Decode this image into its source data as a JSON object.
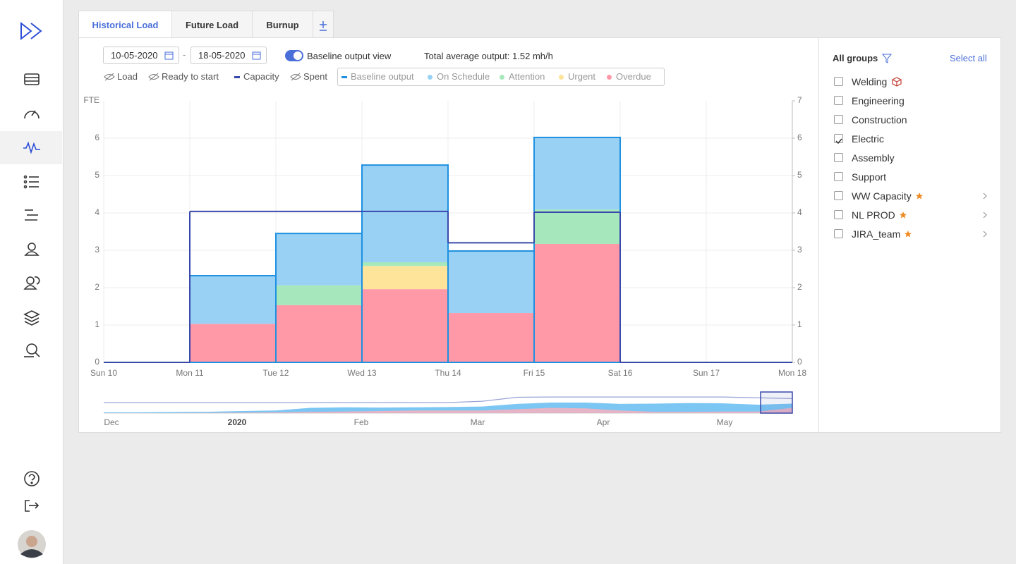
{
  "tabs": [
    {
      "label": "Historical Load",
      "active": true
    },
    {
      "label": "Future Load",
      "active": false
    },
    {
      "label": "Burnup",
      "active": false
    }
  ],
  "toolbar": {
    "date_from": "10-05-2020",
    "date_separator": "-",
    "date_to": "18-05-2020",
    "baseline_view_label": "Baseline output view",
    "baseline_view_on": true,
    "total_output": "Total average output: 1.52 mh/h"
  },
  "chart_data": {
    "type": "stacked-bar",
    "y_label": "FTE",
    "hidden_legend": [
      "Load",
      "Ready to start",
      "Spent"
    ],
    "x": [
      "Sun 10",
      "Mon 11",
      "Tue 12",
      "Wed 13",
      "Thu 14",
      "Fri 15",
      "Sat 16",
      "Sun 17",
      "Mon 18"
    ],
    "ylim": [
      0,
      7
    ],
    "yticks": [
      0,
      1,
      2,
      3,
      4,
      5,
      6
    ],
    "y2lim": [
      0,
      7
    ],
    "y2ticks": [
      0,
      1,
      2,
      3,
      4,
      5,
      6,
      7
    ],
    "grid": true,
    "series": [
      {
        "name": "Overdue",
        "color": "#ff99a8",
        "values": [
          0,
          1.03,
          1.53,
          1.96,
          1.32,
          3.17,
          0,
          0,
          null
        ]
      },
      {
        "name": "Urgent",
        "color": "#fde49a",
        "values": [
          0,
          0,
          0,
          0.62,
          0,
          0,
          0,
          0,
          null
        ]
      },
      {
        "name": "Attention",
        "color": "#a6e8bc",
        "values": [
          0,
          0,
          0.53,
          0.1,
          0,
          0.92,
          0,
          0,
          null
        ]
      },
      {
        "name": "On Schedule",
        "color": "#99d1f5",
        "values": [
          0,
          1.29,
          1.39,
          2.6,
          1.66,
          1.93,
          0,
          0,
          null
        ]
      },
      {
        "name": "Baseline output",
        "color": "#1e90e0",
        "kind": "outline",
        "values": [
          0,
          2.32,
          3.45,
          5.28,
          2.98,
          6.02,
          0,
          0,
          null
        ]
      },
      {
        "name": "Capacity",
        "color": "#3949ab",
        "kind": "step",
        "values": [
          0,
          4.04,
          4.04,
          4.04,
          3.2,
          4.02,
          0,
          0,
          null
        ]
      }
    ]
  },
  "navigator": {
    "labels": [
      "Dec",
      "2020",
      "Feb",
      "Mar",
      "Apr",
      "May"
    ],
    "ylim": [
      0,
      8
    ],
    "series": [
      {
        "color": "#5bb8f0",
        "kind": "area",
        "values": [
          0.3,
          0.3,
          0.4,
          0.5,
          0.8,
          1,
          2,
          2.2,
          2.1,
          2.2,
          2.3,
          2.5,
          3.5,
          4,
          4,
          3.5,
          3.6,
          3.8,
          3.7,
          3.2,
          3.6
        ]
      },
      {
        "color": "#ffb0bc",
        "kind": "area",
        "values": [
          0,
          0,
          0,
          0.1,
          0.2,
          0.3,
          0.5,
          0.6,
          0.8,
          1,
          1,
          1,
          1.5,
          2,
          1.8,
          1,
          0.5,
          0.5,
          0.6,
          0.6,
          2
        ]
      },
      {
        "color": "#9aa3d6",
        "kind": "line",
        "values": [
          4,
          4,
          4,
          4,
          4,
          4,
          4,
          4,
          4,
          4,
          4,
          4.5,
          6,
          6.1,
          6.1,
          6.1,
          6.1,
          6.1,
          6.1,
          5.8,
          5.5
        ]
      }
    ]
  },
  "groups_panel": {
    "title": "All groups",
    "select_all": "Select all",
    "groups": [
      {
        "label": "Welding",
        "checked": false,
        "icon": "cube"
      },
      {
        "label": "Engineering",
        "checked": false
      },
      {
        "label": "Construction",
        "checked": false
      },
      {
        "label": "Electric",
        "checked": true
      },
      {
        "label": "Assembly",
        "checked": false
      },
      {
        "label": "Support",
        "checked": false
      },
      {
        "label": "WW Capacity",
        "checked": false,
        "starred": true,
        "expandable": true
      },
      {
        "label": "NL PROD",
        "checked": false,
        "starred": true,
        "expandable": true
      },
      {
        "label": "JIRA_team",
        "checked": false,
        "starred": true,
        "expandable": true
      }
    ]
  }
}
